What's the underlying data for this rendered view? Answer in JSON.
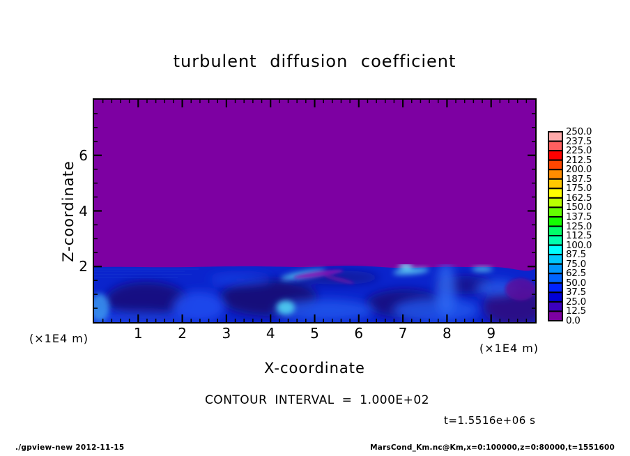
{
  "title": "turbulent diffusion coefficient",
  "chart_data": {
    "type": "heatmap",
    "title": "turbulent diffusion coefficient",
    "xlabel": "X-coordinate",
    "ylabel": "Z-coordinate",
    "x_unit_label": "(×1E4 m)",
    "y_unit_label": "(×1E4 m)",
    "xlim": [
      0,
      10
    ],
    "ylim": [
      0,
      8
    ],
    "x_ticks_major": [
      1,
      2,
      3,
      4,
      5,
      6,
      7,
      8,
      9
    ],
    "x_tick_labels": [
      "1",
      "2",
      "3",
      "4",
      "5",
      "6",
      "7",
      "8",
      "9"
    ],
    "x_minor_step": 0.2,
    "y_ticks_major": [
      2,
      4,
      6
    ],
    "y_tick_labels": [
      "2",
      "4",
      "6"
    ],
    "y_minor_step": 0.5,
    "field": {
      "upper_region": {
        "z_range_x1e4_m": [
          2,
          8
        ],
        "value_range": "0.0-12.5",
        "appearance": "uniform purple fill"
      },
      "lower_region": {
        "z_range_x1e4_m": [
          0,
          2
        ],
        "value_range": "12.5-100",
        "appearance": "turbulent blue eddies with cyan and magenta filaments"
      }
    },
    "colorbar": {
      "min": 0.0,
      "max": 250.0,
      "step": 12.5,
      "labels_top_to_bottom": [
        "250.0",
        "237.5",
        "225.0",
        "212.5",
        "200.0",
        "187.5",
        "175.0",
        "162.5",
        "150.0",
        "137.5",
        "125.0",
        "112.5",
        "100.0",
        "87.5",
        "75.0",
        "62.5",
        "50.0",
        "37.5",
        "25.0",
        "12.5",
        "0.0"
      ],
      "colors_bottom_to_top": [
        "#7d00a2",
        "#3c00be",
        "#0000d7",
        "#0023ff",
        "#0064ff",
        "#0096ff",
        "#00c8ff",
        "#00ffff",
        "#00ffaf",
        "#00ff69",
        "#14ff00",
        "#64ff00",
        "#b9ff00",
        "#ffff00",
        "#ffc800",
        "#ff8c00",
        "#ff4600",
        "#ff0000",
        "#ff5f5f",
        "#ffaaaa"
      ]
    },
    "contour_interval_label": "CONTOUR INTERVAL = 1.000E+02",
    "time_label": "t=1.5516e+06 s",
    "colors": {
      "upper_fill": "#7d00a2",
      "lower_base": "#0a24cd",
      "frame": "#000000"
    }
  },
  "footer": {
    "left": "./gpview-new  2012-11-15",
    "right": "MarsCond_Km.nc@Km,x=0:100000,z=0:80000,t=1551600"
  }
}
